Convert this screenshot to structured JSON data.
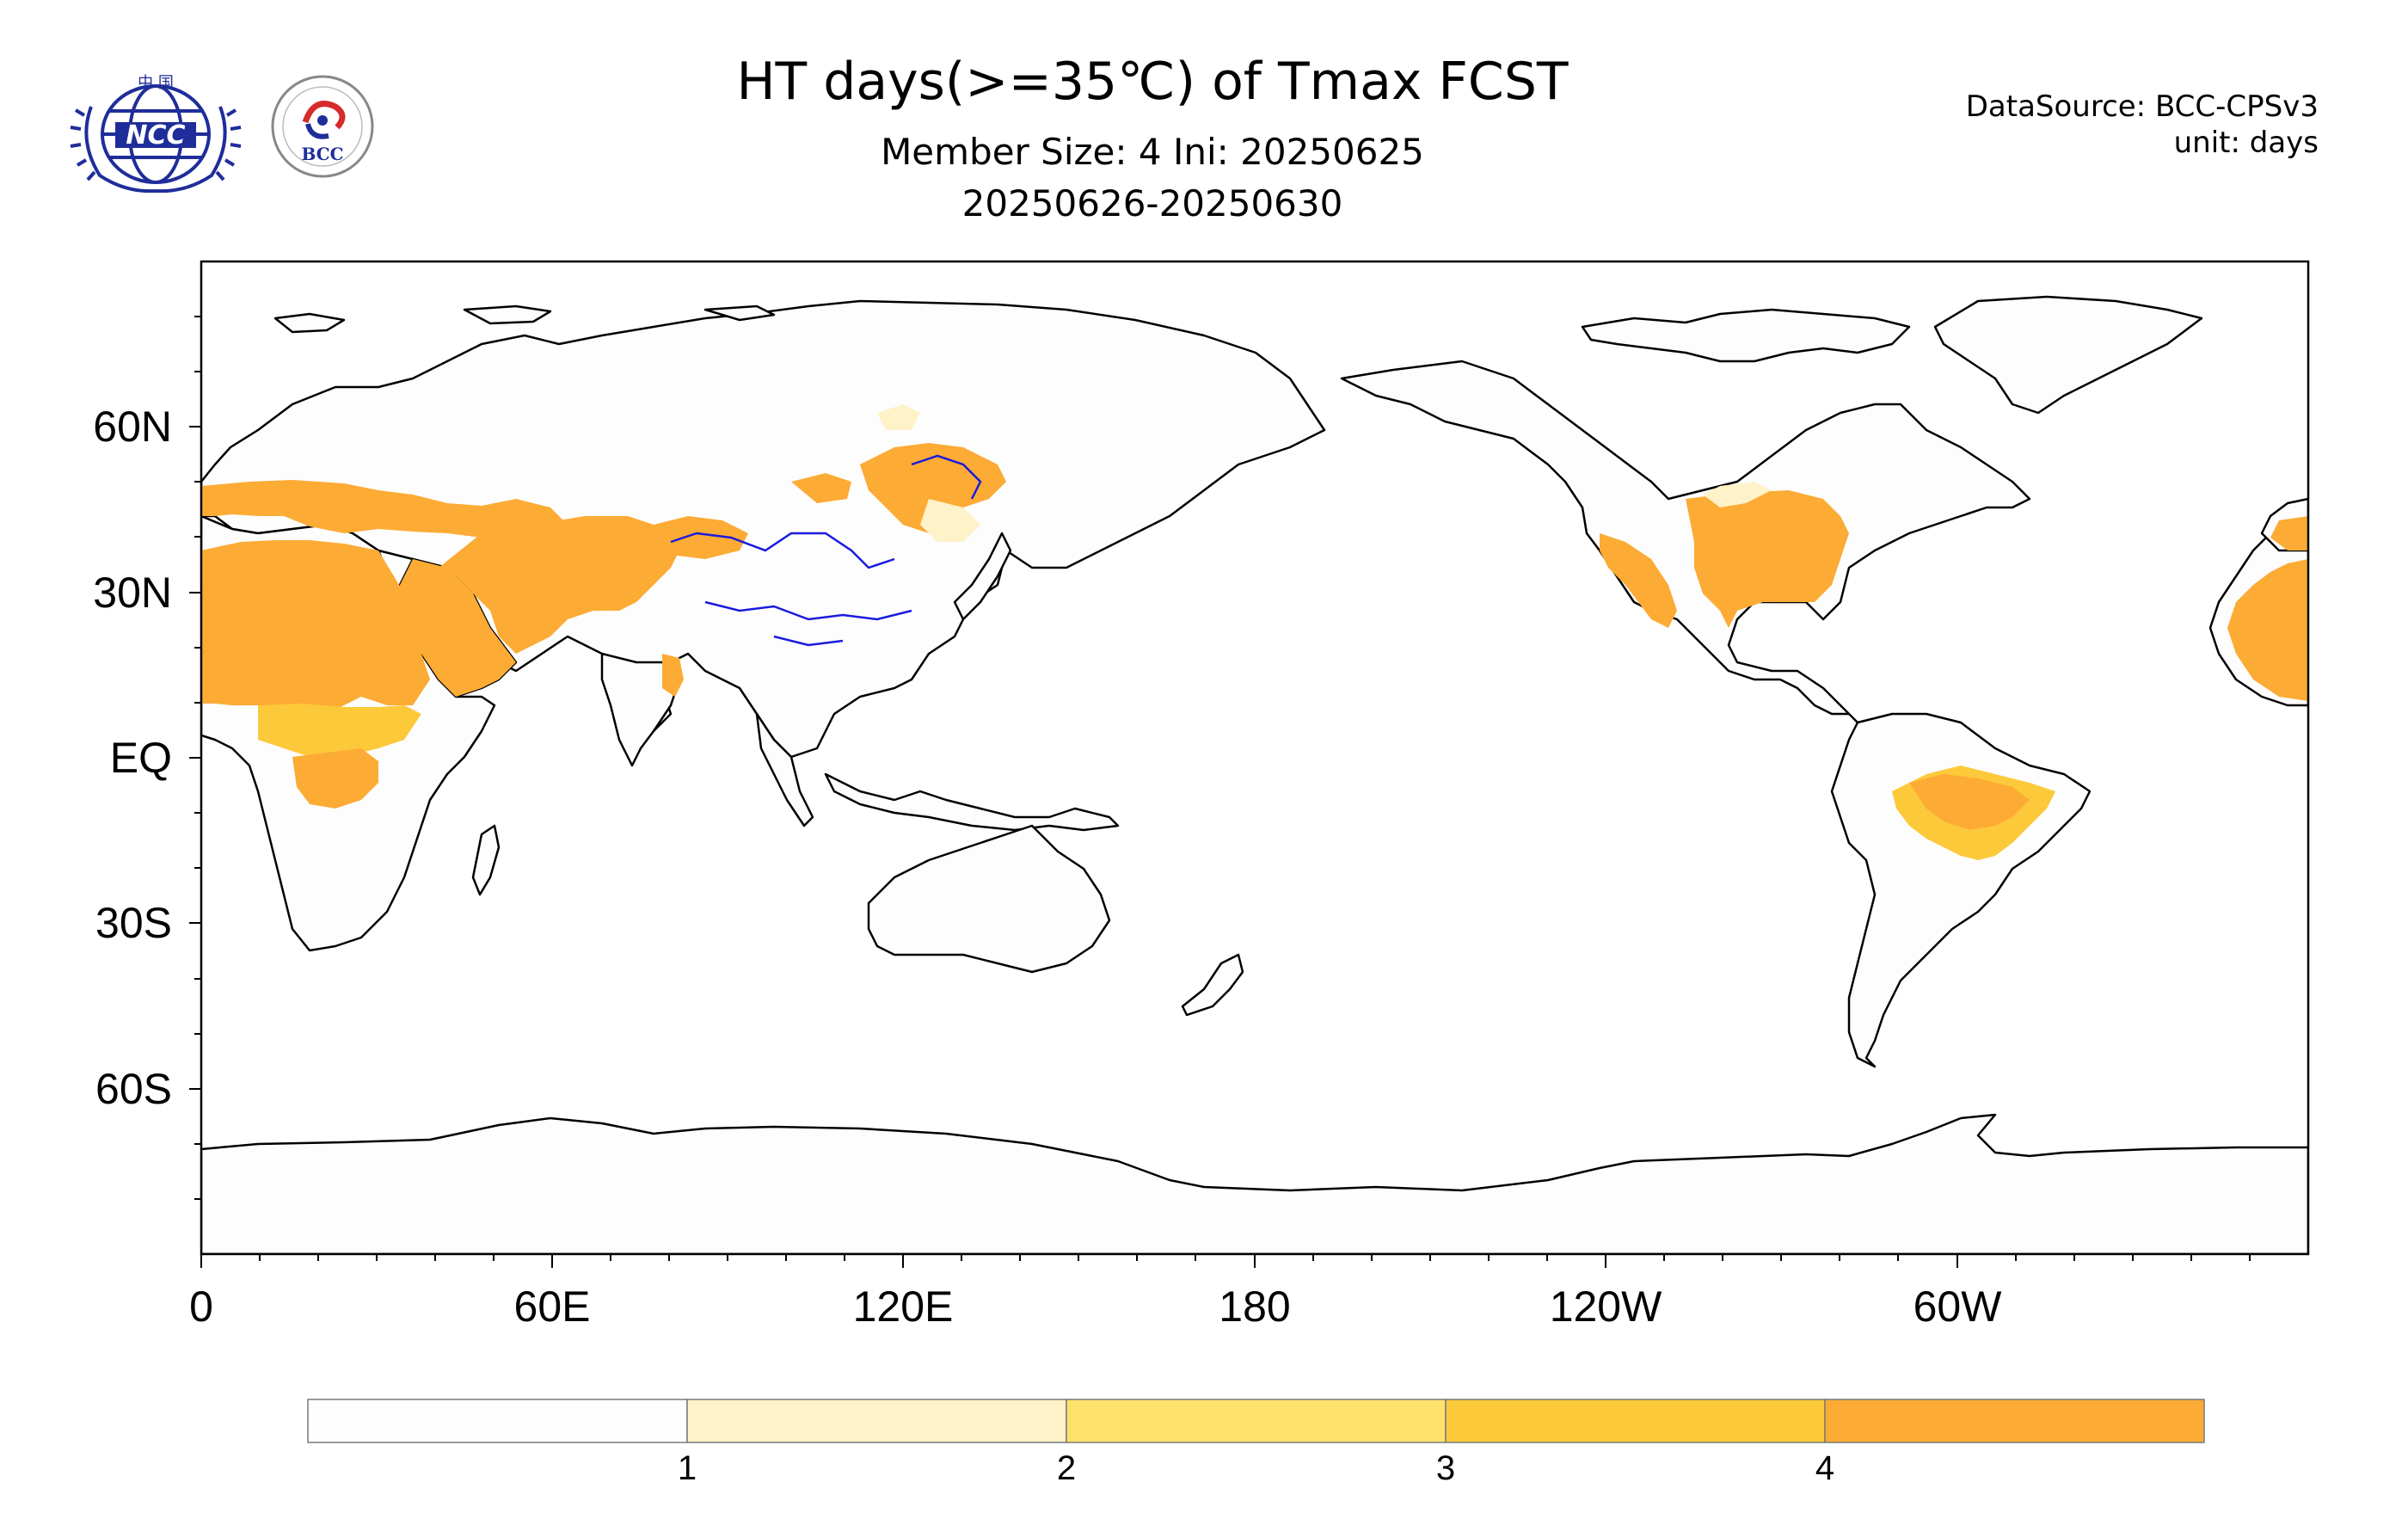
{
  "header": {
    "title": "HT days(>=35℃) of Tmax FCST",
    "subtitle_line1": "Member Size: 4  Ini: 20250625",
    "subtitle_line2": "20250626-20250630",
    "data_source": "DataSource: BCC-CPSv3",
    "unit": "unit: days"
  },
  "logos": {
    "ncc": {
      "name": "NCC",
      "top_text": "中 国",
      "color": "#1f2d9a"
    },
    "bcc": {
      "name": "BCC",
      "color": "#1f2d9a",
      "accent": "#d62b2b"
    }
  },
  "map": {
    "projection": "cylindrical-equidistant",
    "central_longitude": 180,
    "lat_labels": [
      "60N",
      "30N",
      "EQ",
      "30S",
      "60S"
    ],
    "lon_labels": [
      "0",
      "60E",
      "120E",
      "180",
      "120W",
      "60W"
    ],
    "land_color": "#fdfdfd",
    "coastline_color": "#000000",
    "river_color": "#1a1adf"
  },
  "colorbar": {
    "levels": [
      "1",
      "2",
      "3",
      "4"
    ],
    "colors": [
      "#fdfdfd",
      "#fef2c8",
      "#ffe26b",
      "#fcc93a",
      "#fcab35"
    ]
  }
}
